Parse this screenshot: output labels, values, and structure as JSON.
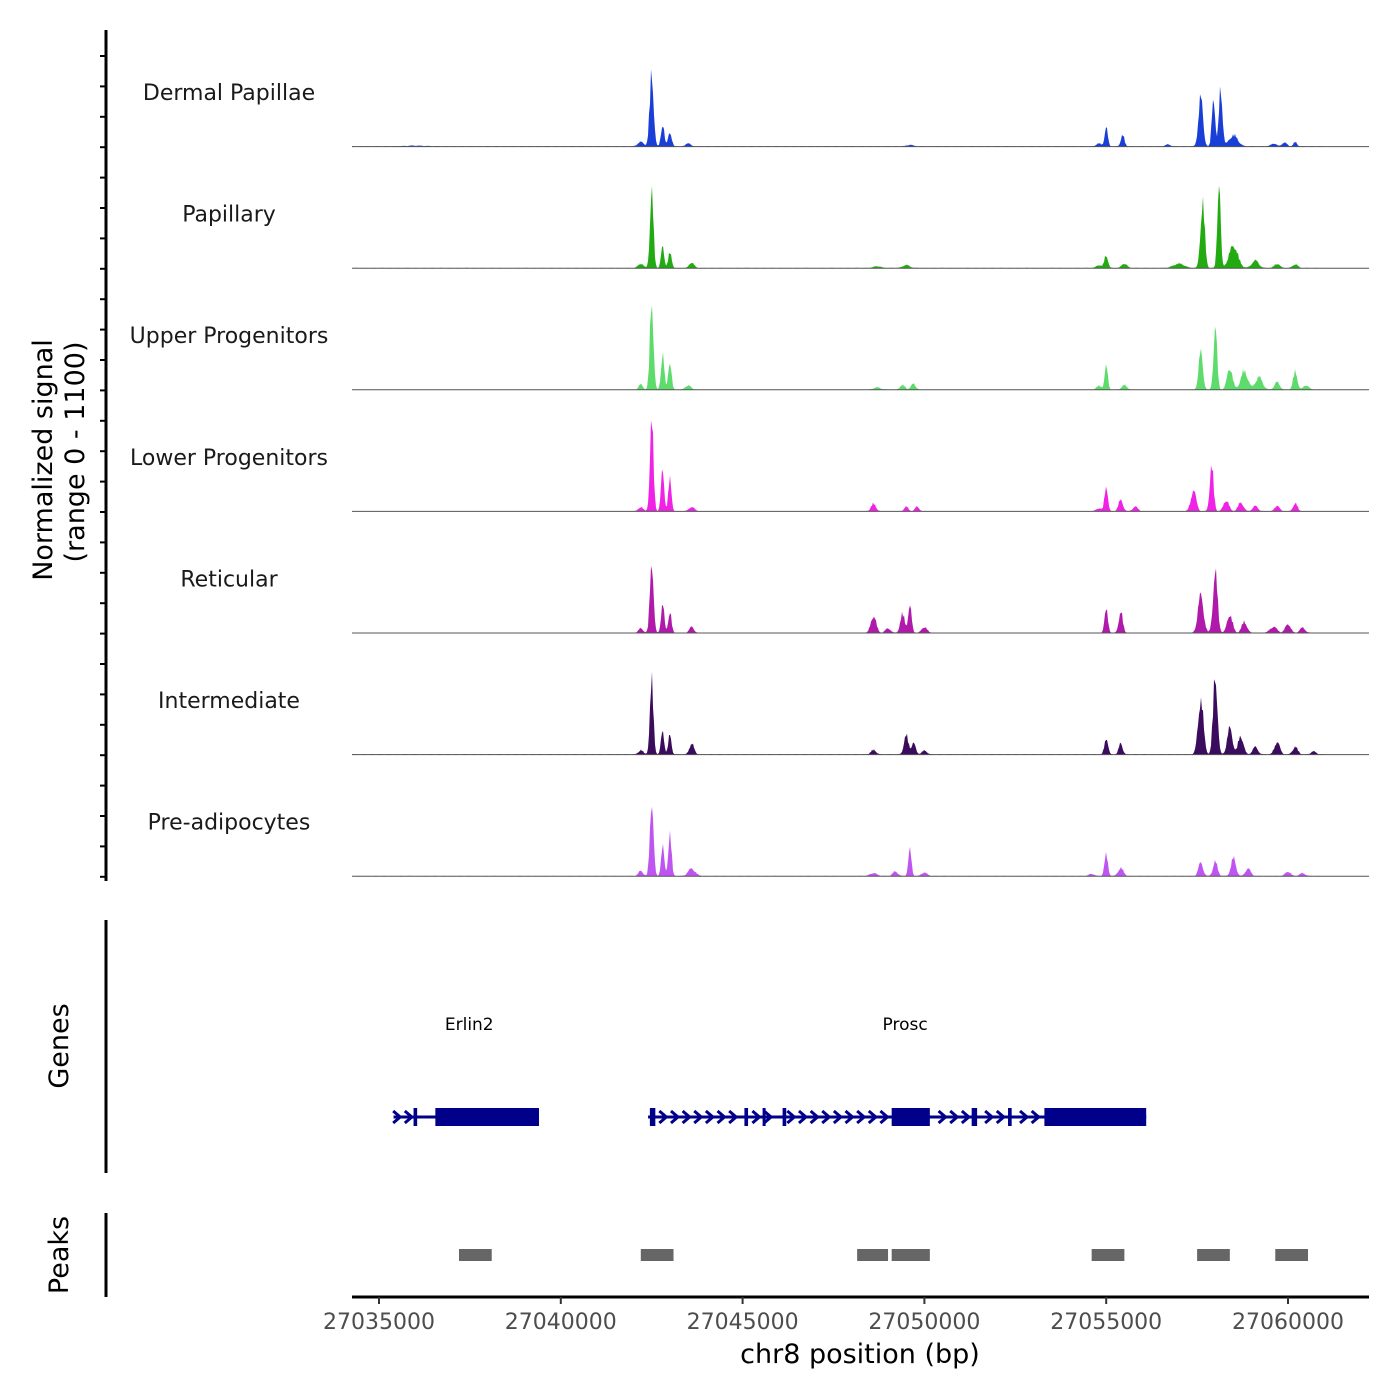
{
  "chart_data": {
    "type": "area",
    "title": "",
    "xlabel": "chr8 position (bp)",
    "ylabel_line1": "Normalized signal",
    "ylabel_line2": "(range 0 - 1100)",
    "xlim": [
      27034000,
      27062500
    ],
    "ylim": [
      0,
      1100
    ],
    "x_ticks": [
      27035000,
      27040000,
      27045000,
      27050000,
      27055000,
      27060000
    ],
    "x_tick_labels": [
      "27035000",
      "27040000",
      "27045000",
      "27050000",
      "27055000",
      "27060000"
    ],
    "panel_labels": {
      "genes": "Genes",
      "peaks": "Peaks"
    },
    "tracks": [
      {
        "name": "Dermal Papillae",
        "color": "#1a3fd6",
        "peaks": [
          [
            27036000,
            10,
            600
          ],
          [
            27042200,
            60,
            180
          ],
          [
            27042500,
            1000,
            110
          ],
          [
            27042800,
            320,
            90
          ],
          [
            27043000,
            200,
            100
          ],
          [
            27043500,
            50,
            120
          ],
          [
            27049600,
            20,
            200
          ],
          [
            27054800,
            40,
            150
          ],
          [
            27055000,
            250,
            90
          ],
          [
            27055450,
            160,
            100
          ],
          [
            27056700,
            25,
            150
          ],
          [
            27057600,
            650,
            130
          ],
          [
            27057950,
            700,
            90
          ],
          [
            27058150,
            800,
            100
          ],
          [
            27058500,
            150,
            250
          ],
          [
            27059600,
            40,
            150
          ],
          [
            27059900,
            50,
            150
          ],
          [
            27060200,
            60,
            100
          ]
        ]
      },
      {
        "name": "Papillary",
        "color": "#22aa11",
        "peaks": [
          [
            27042200,
            60,
            150
          ],
          [
            27042500,
            1000,
            100
          ],
          [
            27042800,
            280,
            90
          ],
          [
            27043000,
            200,
            100
          ],
          [
            27043600,
            80,
            130
          ],
          [
            27048700,
            25,
            200
          ],
          [
            27049500,
            40,
            200
          ],
          [
            27054800,
            40,
            150
          ],
          [
            27055000,
            180,
            100
          ],
          [
            27055500,
            60,
            150
          ],
          [
            27057000,
            60,
            300
          ],
          [
            27057650,
            900,
            120
          ],
          [
            27058100,
            1200,
            90
          ],
          [
            27058500,
            300,
            250
          ],
          [
            27059100,
            100,
            200
          ],
          [
            27059700,
            60,
            150
          ],
          [
            27060200,
            50,
            150
          ]
        ]
      },
      {
        "name": "Upper Progenitors",
        "color": "#5ddb6b",
        "peaks": [
          [
            27042200,
            70,
            120
          ],
          [
            27042500,
            1230,
            100
          ],
          [
            27042800,
            500,
            90
          ],
          [
            27043000,
            400,
            90
          ],
          [
            27043500,
            60,
            150
          ],
          [
            27048700,
            30,
            200
          ],
          [
            27049400,
            60,
            150
          ],
          [
            27049700,
            80,
            130
          ],
          [
            27054800,
            50,
            150
          ],
          [
            27055000,
            310,
            90
          ],
          [
            27055500,
            60,
            150
          ],
          [
            27057600,
            500,
            120
          ],
          [
            27058000,
            850,
            100
          ],
          [
            27058400,
            300,
            150
          ],
          [
            27058800,
            250,
            200
          ],
          [
            27059200,
            170,
            200
          ],
          [
            27059700,
            100,
            150
          ],
          [
            27060200,
            240,
            120
          ],
          [
            27060500,
            60,
            150
          ]
        ]
      },
      {
        "name": "Lower Progenitors",
        "color": "#ef22e6",
        "peaks": [
          [
            27042200,
            60,
            130
          ],
          [
            27042500,
            1200,
            100
          ],
          [
            27042800,
            550,
            90
          ],
          [
            27043000,
            420,
            90
          ],
          [
            27043600,
            60,
            150
          ],
          [
            27048600,
            100,
            140
          ],
          [
            27049500,
            60,
            120
          ],
          [
            27049800,
            60,
            120
          ],
          [
            27054800,
            40,
            150
          ],
          [
            27055000,
            360,
            90
          ],
          [
            27055400,
            150,
            130
          ],
          [
            27055800,
            60,
            150
          ],
          [
            27057400,
            280,
            150
          ],
          [
            27057900,
            600,
            110
          ],
          [
            27058300,
            150,
            150
          ],
          [
            27058700,
            120,
            150
          ],
          [
            27059100,
            70,
            150
          ],
          [
            27059700,
            80,
            130
          ],
          [
            27060200,
            110,
            120
          ]
        ]
      },
      {
        "name": "Reticular",
        "color": "#b01aaa",
        "peaks": [
          [
            27042200,
            60,
            130
          ],
          [
            27042500,
            1000,
            100
          ],
          [
            27042800,
            400,
            90
          ],
          [
            27043000,
            300,
            90
          ],
          [
            27043600,
            80,
            130
          ],
          [
            27048600,
            230,
            150
          ],
          [
            27049000,
            60,
            150
          ],
          [
            27049400,
            250,
            130
          ],
          [
            27049600,
            350,
            100
          ],
          [
            27050000,
            80,
            150
          ],
          [
            27055000,
            300,
            100
          ],
          [
            27055400,
            300,
            110
          ],
          [
            27057600,
            500,
            160
          ],
          [
            27058000,
            800,
            130
          ],
          [
            27058400,
            250,
            150
          ],
          [
            27058800,
            150,
            150
          ],
          [
            27059600,
            80,
            200
          ],
          [
            27060000,
            120,
            150
          ],
          [
            27060400,
            70,
            150
          ]
        ]
      },
      {
        "name": "Intermediate",
        "color": "#3b0c5e",
        "peaks": [
          [
            27042200,
            60,
            130
          ],
          [
            27042500,
            960,
            100
          ],
          [
            27042800,
            320,
            90
          ],
          [
            27043000,
            260,
            90
          ],
          [
            27043600,
            150,
            130
          ],
          [
            27048600,
            60,
            150
          ],
          [
            27049500,
            250,
            130
          ],
          [
            27049700,
            150,
            120
          ],
          [
            27050000,
            50,
            150
          ],
          [
            27055000,
            230,
            100
          ],
          [
            27055400,
            150,
            110
          ],
          [
            27057600,
            750,
            150
          ],
          [
            27058000,
            1100,
            120
          ],
          [
            27058400,
            350,
            150
          ],
          [
            27058700,
            250,
            150
          ],
          [
            27059100,
            100,
            150
          ],
          [
            27059700,
            170,
            150
          ],
          [
            27060200,
            100,
            150
          ],
          [
            27060700,
            40,
            150
          ]
        ]
      },
      {
        "name": "Pre-adipocytes",
        "color": "#be55f0",
        "peaks": [
          [
            27042200,
            70,
            130
          ],
          [
            27042500,
            1050,
            100
          ],
          [
            27042800,
            400,
            90
          ],
          [
            27043000,
            600,
            90
          ],
          [
            27043600,
            100,
            200
          ],
          [
            27048600,
            40,
            200
          ],
          [
            27049200,
            60,
            150
          ],
          [
            27049600,
            350,
            90
          ],
          [
            27050000,
            50,
            150
          ],
          [
            27054600,
            30,
            150
          ],
          [
            27055000,
            280,
            100
          ],
          [
            27055400,
            110,
            150
          ],
          [
            27057600,
            180,
            130
          ],
          [
            27058000,
            190,
            130
          ],
          [
            27058500,
            240,
            140
          ],
          [
            27058900,
            100,
            150
          ],
          [
            27060000,
            60,
            150
          ],
          [
            27060400,
            40,
            150
          ]
        ]
      }
    ],
    "genes": [
      {
        "name": "Erlin2",
        "start": 27035400,
        "end": 27039400,
        "strand": "+",
        "exons": [
          [
            27035950,
            27036050
          ],
          [
            27036550,
            27039400
          ]
        ]
      },
      {
        "name": "Prosc",
        "start": 27042400,
        "end": 27056100,
        "strand": "+",
        "exons": [
          [
            27042450,
            27042600
          ],
          [
            27045050,
            27045150
          ],
          [
            27045550,
            27045570
          ],
          [
            27046100,
            27046200
          ],
          [
            27049100,
            27050150
          ],
          [
            27051300,
            27051450
          ],
          [
            27052300,
            27052400
          ],
          [
            27053300,
            27056100
          ]
        ]
      }
    ],
    "peaks": [
      [
        27037200,
        27038100
      ],
      [
        27042200,
        27043100
      ],
      [
        27048150,
        27049000
      ],
      [
        27049100,
        27050150
      ],
      [
        27054600,
        27055500
      ],
      [
        27057500,
        27058400
      ],
      [
        27059650,
        27060550
      ]
    ],
    "colors": {
      "gene": "#00008b",
      "peak": "#666666",
      "axis": "#000000",
      "baseline": "#555555"
    }
  }
}
